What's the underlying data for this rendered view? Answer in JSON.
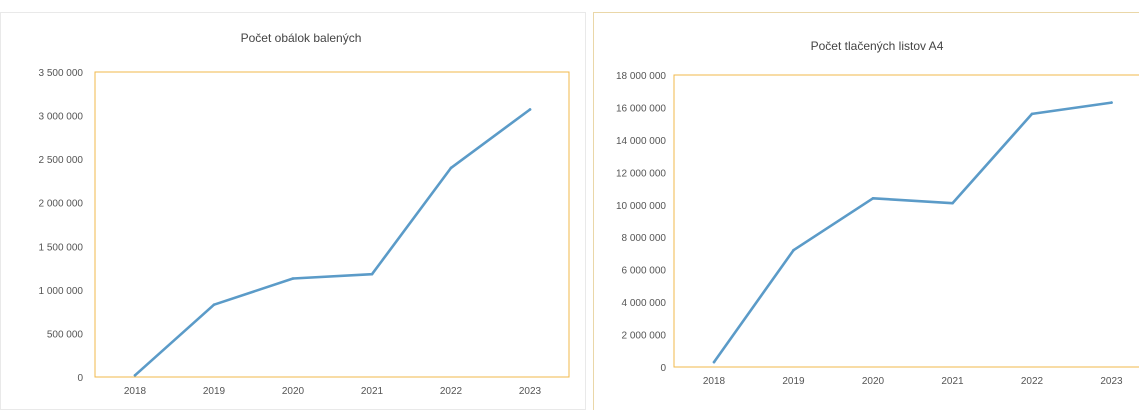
{
  "chart_data": [
    {
      "type": "line",
      "title": "Počet obálok balených",
      "categories": [
        "2018",
        "2019",
        "2020",
        "2021",
        "2022",
        "2023"
      ],
      "values": [
        20000,
        830000,
        1130000,
        1180000,
        2400000,
        3070000
      ],
      "ylim": [
        0,
        3500000
      ],
      "yticks": [
        0,
        500000,
        1000000,
        1500000,
        2000000,
        2500000,
        3000000,
        3500000
      ],
      "ytick_labels": [
        "0",
        "500 000",
        "1 000 000",
        "1 500 000",
        "2 000 000",
        "2 500 000",
        "3 000 000",
        "3 500 000"
      ],
      "grid": false,
      "line_color": "#5b9bc8",
      "plot_border_color": "#f2b84b"
    },
    {
      "type": "line",
      "title": "Počet tlačených listov A4",
      "categories": [
        "2018",
        "2019",
        "2020",
        "2021",
        "2022",
        "2023"
      ],
      "values": [
        300000,
        7200000,
        10400000,
        10100000,
        15600000,
        16300000
      ],
      "ylim": [
        0,
        18000000
      ],
      "yticks": [
        0,
        2000000,
        4000000,
        6000000,
        8000000,
        10000000,
        12000000,
        14000000,
        16000000,
        18000000
      ],
      "ytick_labels": [
        "0",
        "2 000 000",
        "4 000 000",
        "6 000 000",
        "8 000 000",
        "10 000 000",
        "12 000 000",
        "14 000 000",
        "16 000 000",
        "18 000 000"
      ],
      "grid": false,
      "line_color": "#5b9bc8",
      "plot_border_color": "#f2b84b"
    }
  ]
}
